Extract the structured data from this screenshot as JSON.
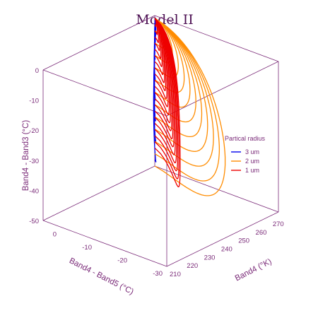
{
  "chart_data": {
    "type": "line",
    "subtype": "3d-parametric-loops",
    "title": "Model II",
    "xlabel": "Band4 (°K)",
    "ylabel": "Band4 - Band5 (°C)",
    "zlabel": "Band4 - Band3 (°C)",
    "x_ticks": [
      "210",
      "220",
      "230",
      "240",
      "250",
      "260",
      "270"
    ],
    "y_ticks": [
      "-30",
      "-20",
      "-10",
      "0"
    ],
    "z_ticks": [
      "0",
      "-10",
      "-20",
      "-30",
      "-40",
      "-50"
    ],
    "xlim": [
      210,
      275
    ],
    "ylim": [
      -30,
      5
    ],
    "zlim": [
      -50,
      0
    ],
    "legend": {
      "title": "Partical radius",
      "position": "right",
      "entries": [
        {
          "label": "3 um",
          "color": "#0000ee"
        },
        {
          "label": "2 um",
          "color": "#ff8c00"
        },
        {
          "label": "1 um",
          "color": "#ee0000"
        }
      ]
    },
    "series": [
      {
        "name": "3 um",
        "color": "#0000ee",
        "loops": 8,
        "x_range": [
          262,
          273
        ],
        "y_range": [
          -1,
          4
        ],
        "z_range": [
          -47,
          0
        ]
      },
      {
        "name": "2 um",
        "color": "#ff8c00",
        "loops": 13,
        "x_range": [
          244,
          273
        ],
        "y_range": [
          -30,
          4
        ],
        "z_range": [
          -49,
          0
        ]
      },
      {
        "name": "1 um",
        "color": "#ee0000",
        "loops": 22,
        "x_range": [
          226,
          273
        ],
        "y_range": [
          -26,
          4
        ],
        "z_range": [
          -43,
          0
        ]
      }
    ]
  }
}
